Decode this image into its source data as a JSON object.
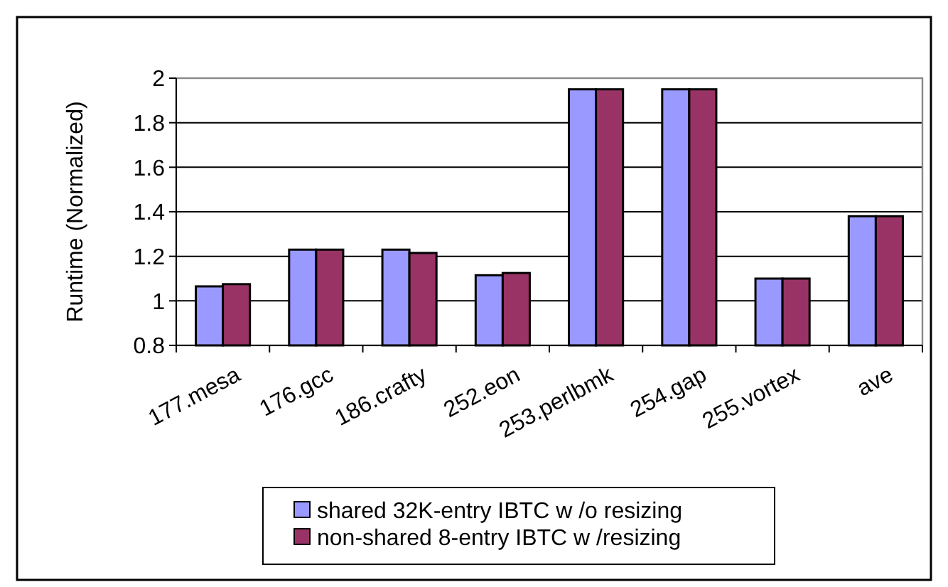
{
  "chart_data": {
    "type": "bar",
    "ylabel": "Runtime (Normalized)",
    "categories": [
      "177.mesa",
      "176.gcc",
      "186.crafty",
      "252.eon",
      "253.perlbmk",
      "254.gap",
      "255.vortex",
      "ave"
    ],
    "series": [
      {
        "name": "shared 32K-entry IBTC w /o resizing",
        "color": "#9999ff",
        "values": [
          1.065,
          1.23,
          1.23,
          1.115,
          1.95,
          1.95,
          1.1,
          1.38
        ]
      },
      {
        "name": "non-shared 8-entry IBTC w /resizing",
        "color": "#993366",
        "values": [
          1.075,
          1.23,
          1.215,
          1.125,
          1.95,
          1.95,
          1.1,
          1.38
        ]
      }
    ],
    "ylim": [
      0.8,
      2
    ],
    "yticks": [
      0.8,
      1,
      1.2,
      1.4,
      1.6,
      1.8,
      2
    ],
    "grid": "y",
    "legend": "bottom"
  }
}
